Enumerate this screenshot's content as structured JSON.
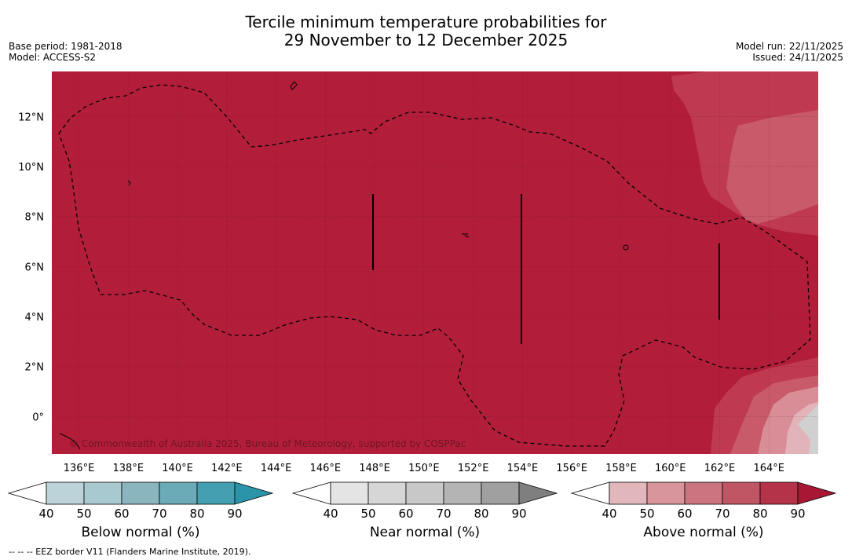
{
  "title": {
    "line1": "Tercile minimum temperature probabilities for",
    "line2": "29 November to 12 December 2025"
  },
  "meta": {
    "base_period": "Base period: 1981-2018",
    "model": "Model: ACCESS-S2",
    "model_run": "Model run: 22/11/2025",
    "issued": "Issued: 24/11/2025"
  },
  "map": {
    "lon_ticks": [
      "136°E",
      "138°E",
      "140°E",
      "142°E",
      "144°E",
      "146°E",
      "148°E",
      "150°E",
      "152°E",
      "154°E",
      "156°E",
      "158°E",
      "160°E",
      "162°E",
      "164°E"
    ],
    "lat_ticks": [
      "12°N",
      "10°N",
      "8°N",
      "6°N",
      "4°N",
      "2°N",
      "0°"
    ],
    "lon_range": [
      134.9,
      166.0
    ],
    "lat_range": [
      -1.5,
      13.8
    ],
    "copyright": "© Commonwealth of Australia 2025, Bureau of Meteorology, supported by COSPPac",
    "colors": {
      "above_90": "#b21e3a",
      "above_80": "#bf3a50",
      "above_70": "#c85a6a",
      "above_60": "#d98e97",
      "above_50": "#e2b4b9",
      "near": "#d0d0d0"
    }
  },
  "colorbars": [
    {
      "name": "Below normal (%)",
      "ticks": [
        "40",
        "50",
        "60",
        "70",
        "80",
        "90"
      ],
      "colors": [
        "#bcd3da",
        "#a8c9cf",
        "#8ab5bf",
        "#6babb8",
        "#44a0b0",
        "#2b94a8"
      ]
    },
    {
      "name": "Near normal (%)",
      "ticks": [
        "40",
        "50",
        "60",
        "70",
        "80",
        "90"
      ],
      "colors": [
        "#e4e4e4",
        "#d6d6d6",
        "#c8c8c8",
        "#b4b4b4",
        "#a0a0a0",
        "#7f7f7f"
      ]
    },
    {
      "name": "Above normal (%)",
      "ticks": [
        "40",
        "50",
        "60",
        "70",
        "80",
        "90"
      ],
      "colors": [
        "#e2b7bc",
        "#d9959c",
        "#cc7480",
        "#c05663",
        "#b53348",
        "#a81834"
      ]
    }
  ],
  "footnote": "-- -- -- EEZ border V11 (Flanders Marine Institute, 2019)."
}
